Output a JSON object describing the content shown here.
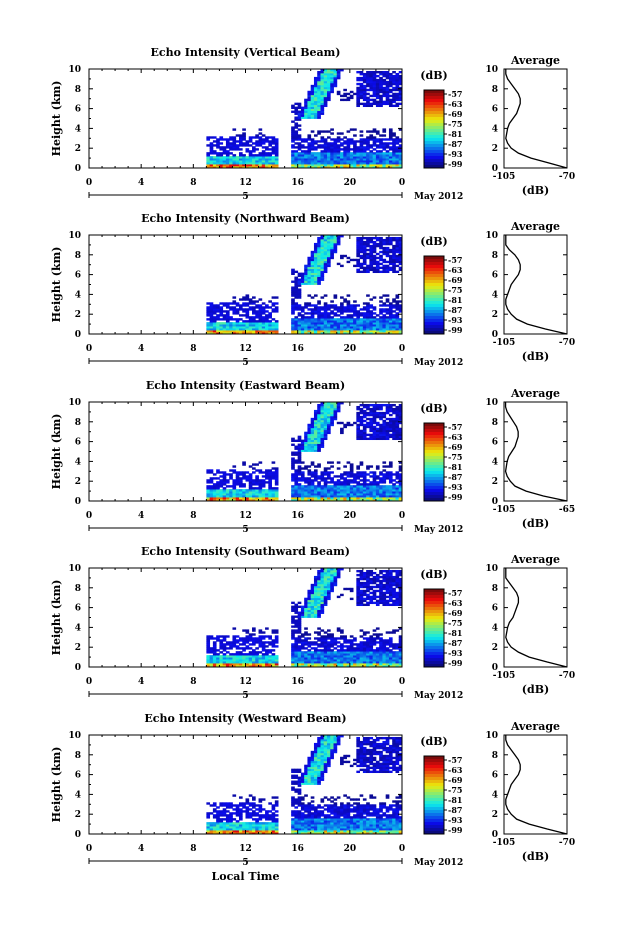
{
  "chart_data": [
    {
      "type": "heatmap",
      "title": "Echo Intensity (Vertical Beam)",
      "ylabel": "Height (km)",
      "xticks": [
        "0",
        "4",
        "8",
        "12",
        "16",
        "20",
        "0"
      ],
      "yticks": [
        "0",
        "2",
        "4",
        "6",
        "8",
        "10"
      ],
      "date_marker": "5",
      "date_label": "May 2012",
      "xlim": [
        0,
        24
      ],
      "ylim": [
        0,
        10
      ],
      "colorbar": {
        "label": "(dB)",
        "ticks": [
          "-57",
          "-63",
          "-69",
          "-75",
          "-81",
          "-87",
          "-93",
          "-99"
        ]
      },
      "profile": {
        "title": "Average",
        "xlabel": "(dB)",
        "xticks": [
          "-105",
          "-70"
        ],
        "yticks": [
          "0",
          "2",
          "4",
          "6",
          "8",
          "10"
        ],
        "xlim": [
          -105,
          -70
        ],
        "heights": [
          0,
          0.5,
          1,
          1.5,
          2,
          2.5,
          3,
          3.5,
          4,
          4.5,
          5,
          5.5,
          6,
          6.5,
          7,
          7.5,
          8,
          8.5,
          9,
          9.5,
          10
        ],
        "values": [
          -70,
          -80,
          -90,
          -97,
          -101,
          -103,
          -104,
          -103.5,
          -103,
          -102,
          -100,
          -98,
          -97,
          -96,
          -96,
          -97,
          -99,
          -101,
          -103,
          -104,
          -104
        ]
      }
    },
    {
      "type": "heatmap",
      "title": "Echo Intensity (Northward Beam)",
      "ylabel": "Height (km)",
      "xticks": [
        "0",
        "4",
        "8",
        "12",
        "16",
        "20",
        "0"
      ],
      "yticks": [
        "0",
        "2",
        "4",
        "6",
        "8",
        "10"
      ],
      "date_marker": "5",
      "date_label": "May 2012",
      "xlim": [
        0,
        24
      ],
      "ylim": [
        0,
        10
      ],
      "colorbar": {
        "label": "(dB)",
        "ticks": [
          "-57",
          "-63",
          "-69",
          "-75",
          "-81",
          "-87",
          "-93",
          "-99"
        ]
      },
      "profile": {
        "title": "Average",
        "xlabel": "(dB)",
        "xticks": [
          "-105",
          "-70"
        ],
        "yticks": [
          "0",
          "2",
          "4",
          "6",
          "8",
          "10"
        ],
        "xlim": [
          -105,
          -70
        ],
        "heights": [
          0,
          0.5,
          1,
          1.5,
          2,
          2.5,
          3,
          3.5,
          4,
          4.5,
          5,
          5.5,
          6,
          6.5,
          7,
          7.5,
          8,
          8.5,
          9,
          9.5,
          10
        ],
        "values": [
          -70,
          -82,
          -92,
          -98,
          -101,
          -103,
          -104,
          -104,
          -103,
          -102,
          -101,
          -99,
          -97,
          -96,
          -96,
          -97,
          -99,
          -102,
          -104,
          -104,
          -104
        ]
      }
    },
    {
      "type": "heatmap",
      "title": "Echo Intensity (Eastward Beam)",
      "ylabel": "Height (km)",
      "xticks": [
        "0",
        "4",
        "8",
        "12",
        "16",
        "20",
        "0"
      ],
      "yticks": [
        "0",
        "2",
        "4",
        "6",
        "8",
        "10"
      ],
      "date_marker": "5",
      "date_label": "May 2012",
      "xlim": [
        0,
        24
      ],
      "ylim": [
        0,
        10
      ],
      "colorbar": {
        "label": "(dB)",
        "ticks": [
          "-57",
          "-63",
          "-69",
          "-75",
          "-81",
          "-87",
          "-93",
          "-99"
        ]
      },
      "profile": {
        "title": "Average",
        "xlabel": "(dB)",
        "xticks": [
          "-105",
          "-65"
        ],
        "yticks": [
          "0",
          "2",
          "4",
          "6",
          "8",
          "10"
        ],
        "xlim": [
          -105,
          -65
        ],
        "heights": [
          0,
          0.5,
          1,
          1.5,
          2,
          2.5,
          3,
          3.5,
          4,
          4.5,
          5,
          5.5,
          6,
          6.5,
          7,
          7.5,
          8,
          8.5,
          9,
          9.5,
          10
        ],
        "values": [
          -65,
          -80,
          -91,
          -98,
          -101,
          -103,
          -104,
          -103.5,
          -103,
          -102,
          -100,
          -98,
          -97,
          -96,
          -96,
          -97,
          -99,
          -101,
          -103,
          -104,
          -104
        ]
      }
    },
    {
      "type": "heatmap",
      "title": "Echo Intensity (Southward Beam)",
      "ylabel": "Height (km)",
      "xticks": [
        "0",
        "4",
        "8",
        "12",
        "16",
        "20",
        "0"
      ],
      "yticks": [
        "0",
        "2",
        "4",
        "6",
        "8",
        "10"
      ],
      "date_marker": "5",
      "date_label": "May 2012",
      "xlim": [
        0,
        24
      ],
      "ylim": [
        0,
        10
      ],
      "colorbar": {
        "label": "(dB)",
        "ticks": [
          "-57",
          "-63",
          "-69",
          "-75",
          "-81",
          "-87",
          "-93",
          "-99"
        ]
      },
      "profile": {
        "title": "Average",
        "xlabel": "(dB)",
        "xticks": [
          "-105",
          "-70"
        ],
        "yticks": [
          "0",
          "2",
          "4",
          "6",
          "8",
          "10"
        ],
        "xlim": [
          -105,
          -70
        ],
        "heights": [
          0,
          0.5,
          1,
          1.5,
          2,
          2.5,
          3,
          3.5,
          4,
          4.5,
          5,
          5.5,
          6,
          6.5,
          7,
          7.5,
          8,
          8.5,
          9,
          9.5,
          10
        ],
        "values": [
          -70,
          -81,
          -91,
          -97,
          -101,
          -103,
          -104,
          -103.5,
          -103,
          -102,
          -100,
          -99,
          -98,
          -97,
          -97,
          -98,
          -100,
          -102,
          -104,
          -104,
          -104
        ]
      }
    },
    {
      "type": "heatmap",
      "title": "Echo Intensity (Westward Beam)",
      "ylabel": "Height (km)",
      "xticks": [
        "0",
        "4",
        "8",
        "12",
        "16",
        "20",
        "0"
      ],
      "yticks": [
        "0",
        "2",
        "4",
        "6",
        "8",
        "10"
      ],
      "date_marker": "5",
      "date_label": "May 2012",
      "xlim": [
        0,
        24
      ],
      "ylim": [
        0,
        10
      ],
      "colorbar": {
        "label": "(dB)",
        "ticks": [
          "-57",
          "-63",
          "-69",
          "-75",
          "-81",
          "-87",
          "-93",
          "-99"
        ]
      },
      "profile": {
        "title": "Average",
        "xlabel": "(dB)",
        "xticks": [
          "-105",
          "-70"
        ],
        "yticks": [
          "0",
          "2",
          "4",
          "6",
          "8",
          "10"
        ],
        "xlim": [
          -105,
          -70
        ],
        "heights": [
          0,
          0.5,
          1,
          1.5,
          2,
          2.5,
          3,
          3.5,
          4,
          4.5,
          5,
          5.5,
          6,
          6.5,
          7,
          7.5,
          8,
          8.5,
          9,
          9.5,
          10
        ],
        "values": [
          -70,
          -81,
          -91,
          -98,
          -101,
          -103,
          -104,
          -104,
          -103,
          -102,
          -101,
          -99,
          -97,
          -96,
          -96,
          -97,
          -99,
          -101,
          -103,
          -104,
          -104
        ]
      }
    }
  ],
  "footer": {
    "xlabel": "Local Time"
  }
}
